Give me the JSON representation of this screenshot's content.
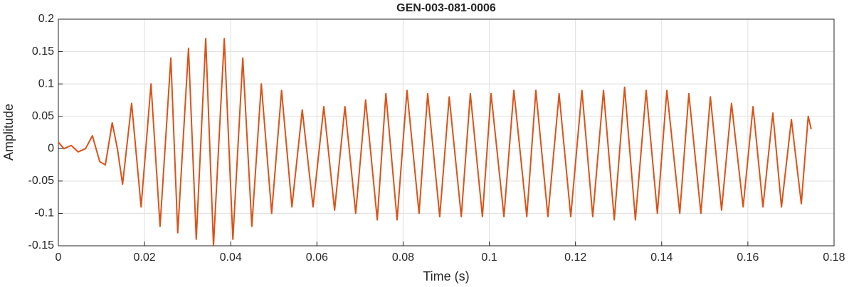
{
  "chart_data": {
    "type": "line",
    "title": "GEN-003-081-0006",
    "x_label": "Time (s)",
    "y_label": "Amplitude",
    "xlim": [
      0,
      0.18
    ],
    "xticks": [
      0,
      0.02,
      0.04,
      0.06,
      0.08,
      0.1,
      0.12,
      0.14,
      0.16,
      0.18
    ],
    "ylim": [
      -0.15,
      0.2
    ],
    "yticks": [
      -0.15,
      -0.1,
      -0.05,
      0,
      0.05,
      0.1,
      0.15,
      0.2
    ],
    "grid": true,
    "series": [
      {
        "color": "#d95319",
        "x": [
          0,
          0.0013,
          0.003,
          0.0046,
          0.0063,
          0.0079,
          0.0096,
          0.0109,
          0.0125,
          0.0137,
          0.0149,
          0.017,
          0.0192,
          0.0215,
          0.0236,
          0.0261,
          0.0277,
          0.0302,
          0.032,
          0.0342,
          0.036,
          0.0385,
          0.0405,
          0.0428,
          0.0449,
          0.0471,
          0.0495,
          0.0518,
          0.0542,
          0.0566,
          0.0591,
          0.0616,
          0.0641,
          0.0665,
          0.069,
          0.0713,
          0.074,
          0.076,
          0.0786,
          0.0809,
          0.0837,
          0.0857,
          0.0885,
          0.0907,
          0.0935,
          0.0956,
          0.0984,
          0.1004,
          0.1034,
          0.1057,
          0.1087,
          0.1108,
          0.1136,
          0.1162,
          0.1189,
          0.1215,
          0.124,
          0.1265,
          0.129,
          0.1314,
          0.1339,
          0.1364,
          0.139,
          0.1412,
          0.1442,
          0.1463,
          0.1491,
          0.1513,
          0.1539,
          0.1562,
          0.1589,
          0.1612,
          0.1635,
          0.1658,
          0.1678,
          0.1701,
          0.1724,
          0.174,
          0.1747
        ],
        "values": [
          0.01,
          0.0,
          0.005,
          -0.005,
          0.0,
          0.02,
          -0.02,
          -0.025,
          0.04,
          0.0,
          -0.055,
          0.07,
          -0.09,
          0.1,
          -0.12,
          0.14,
          -0.13,
          0.155,
          -0.14,
          0.17,
          -0.15,
          0.17,
          -0.14,
          0.14,
          -0.12,
          0.1,
          -0.1,
          0.09,
          -0.09,
          0.06,
          -0.09,
          0.065,
          -0.095,
          0.065,
          -0.1,
          0.075,
          -0.11,
          0.085,
          -0.11,
          0.09,
          -0.1,
          0.085,
          -0.105,
          0.08,
          -0.105,
          0.085,
          -0.105,
          0.085,
          -0.105,
          0.09,
          -0.105,
          0.09,
          -0.105,
          0.085,
          -0.105,
          0.09,
          -0.105,
          0.09,
          -0.11,
          0.095,
          -0.11,
          0.09,
          -0.1,
          0.09,
          -0.1,
          0.085,
          -0.1,
          0.08,
          -0.095,
          0.07,
          -0.09,
          0.065,
          -0.09,
          0.055,
          -0.09,
          0.045,
          -0.085,
          0.05,
          0.03
        ]
      }
    ]
  }
}
